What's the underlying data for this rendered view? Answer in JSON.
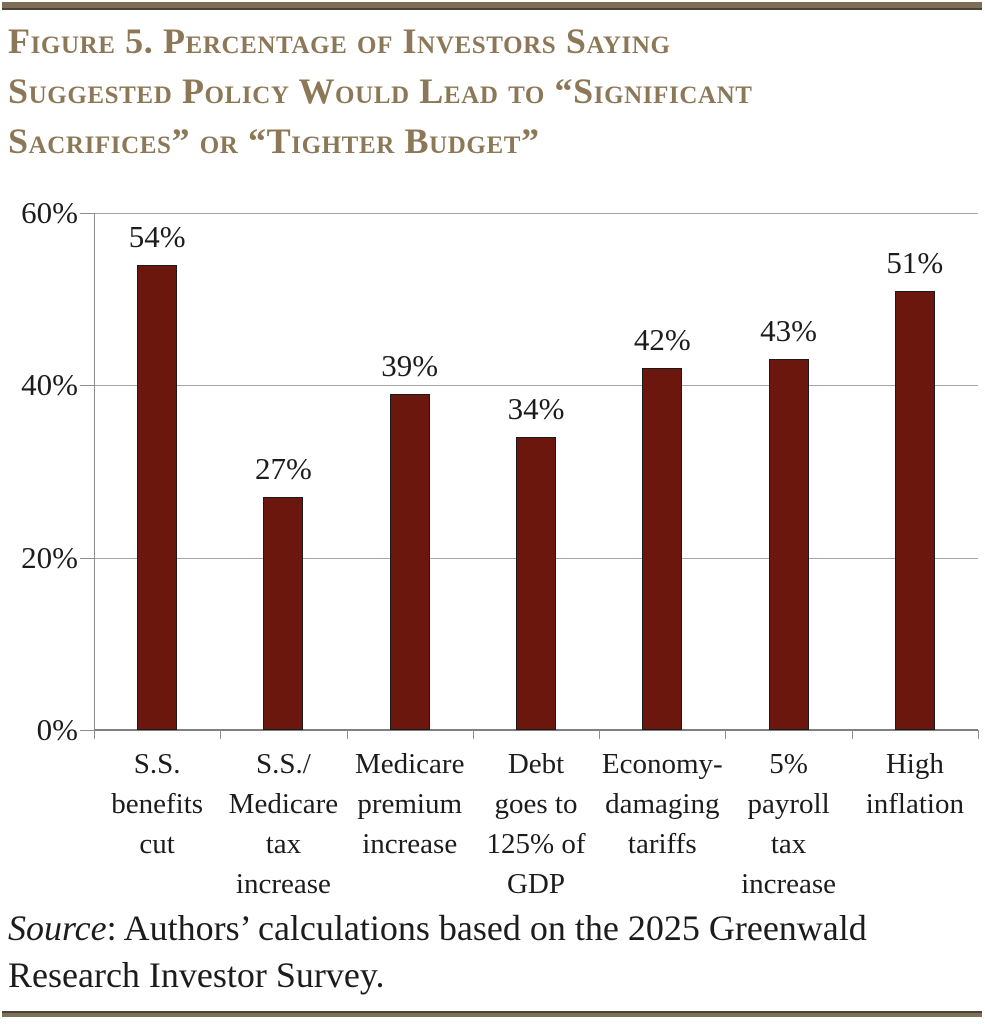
{
  "page": {
    "title": "Figure 5. Percentage of Investors Saying\nSuggested Policy Would Lead to “Significant\nSacrifices” or “Tighter Budget”",
    "source": {
      "prefix_italic": "Source",
      "text": ": Authors’ calculations based on the 2025 Greenwald Research Investor Survey."
    }
  },
  "colors": {
    "bar_fill": "#6b170e",
    "bar_border": "#1a1a1a",
    "title_text": "#8c7857",
    "rule_tan": "#7b6e55",
    "rule_edge": "#494337",
    "gridline": "#a6a6a6",
    "axis": "#8c8c8c",
    "label_text": "#1c1c1c"
  },
  "chart_data": {
    "type": "bar",
    "title": "Percentage of Investors Saying Suggested Policy Would Lead to “Significant Sacrifices” or “Tighter Budget”",
    "categories": [
      "S.S.\nbenefits\ncut",
      "S.S./\nMedicare\ntax\nincrease",
      "Medicare\npremium\nincrease",
      "Debt\ngoes to\n125% of\nGDP",
      "Economy-\ndamaging\ntariffs",
      "5%\npayroll\ntax\nincrease",
      "High\ninflation"
    ],
    "values": [
      54,
      27,
      39,
      34,
      42,
      43,
      51
    ],
    "value_labels": [
      "54%",
      "27%",
      "39%",
      "34%",
      "42%",
      "43%",
      "51%"
    ],
    "xlabel": "",
    "ylabel": "",
    "ylim": [
      0,
      60
    ],
    "yticks": [
      0,
      20,
      40,
      60
    ],
    "ytick_labels": [
      "0%",
      "20%",
      "40%",
      "60%"
    ],
    "grid": true,
    "legend": false,
    "bar_color": "#6b170e"
  }
}
